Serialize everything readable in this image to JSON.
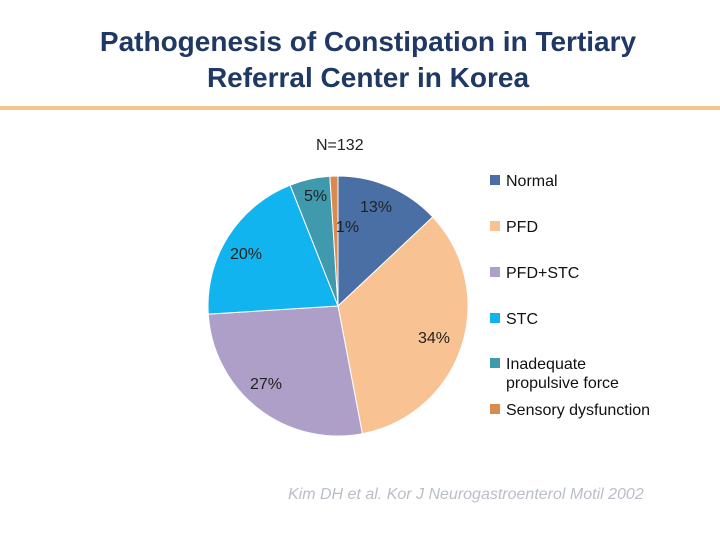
{
  "slide": {
    "title_line1": "Pathogenesis of Constipation in Tertiary",
    "title_line2": "Referral Center in Korea",
    "citation": "Kim DH et al. Kor J Neurogastroenterol Motil 2002",
    "accent_color": "#f3c58e",
    "title_color": "#1f3864"
  },
  "chart_data": {
    "type": "pie",
    "annotation": "N=132",
    "slices": [
      {
        "name": "Normal",
        "value": 13,
        "label": "13%",
        "color": "#4a6fa5"
      },
      {
        "name": "PFD",
        "value": 34,
        "label": "34%",
        "color": "#f9c293"
      },
      {
        "name": "PFD+STC",
        "value": 27,
        "label": "27%",
        "color": "#ae9fc9"
      },
      {
        "name": "STC",
        "value": 20,
        "label": "20%",
        "color": "#12b4ef"
      },
      {
        "name": "Inadequate propulsive force",
        "legend_lines": [
          "Inadequate",
          "propulsive force"
        ],
        "value": 5,
        "label": "5%",
        "color": "#3f9aae"
      },
      {
        "name": "Sensory dysfunction",
        "value": 1,
        "label": "1%",
        "color": "#d98a4e"
      }
    ],
    "legend_position": "right"
  }
}
